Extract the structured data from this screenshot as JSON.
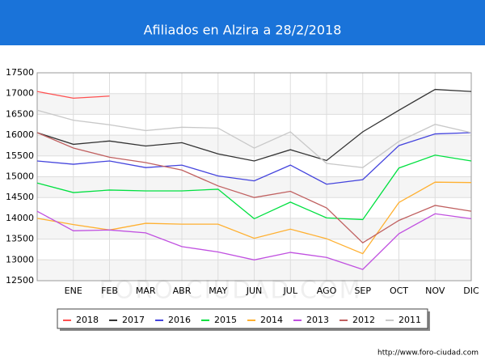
{
  "chart_data": {
    "type": "line",
    "title": "Afiliados en Alzira a 28/2/2018",
    "watermark": "FORO-CIUDAD.COM",
    "source": "http://www.foro-ciudad.com",
    "categories": [
      null,
      "ENE",
      "FEB",
      "MAR",
      "ABR",
      "MAY",
      "JUN",
      "JUL",
      "AGO",
      "SEP",
      "OCT",
      "NOV",
      "DIC"
    ],
    "ylim": [
      12500,
      17500
    ],
    "yticks": [
      12500,
      13000,
      13500,
      14000,
      14500,
      15000,
      15500,
      16000,
      16500,
      17000,
      17500
    ],
    "grid": true,
    "series": [
      {
        "name": "2018",
        "color": "#ff5050",
        "values": [
          17050,
          16890,
          16940,
          null,
          null,
          null,
          null,
          null,
          null,
          null,
          null,
          null,
          null
        ]
      },
      {
        "name": "2017",
        "color": "#333333",
        "values": [
          16060,
          15780,
          15860,
          15740,
          15820,
          15550,
          15380,
          15650,
          15390,
          16080,
          16600,
          17100,
          17050
        ]
      },
      {
        "name": "2016",
        "color": "#4444dd",
        "values": [
          15380,
          15300,
          15380,
          15220,
          15280,
          15020,
          14900,
          15280,
          14820,
          14930,
          15750,
          16030,
          16060
        ]
      },
      {
        "name": "2015",
        "color": "#00e040",
        "values": [
          14850,
          14620,
          14680,
          14660,
          14660,
          14700,
          13990,
          14390,
          14010,
          13970,
          15210,
          15520,
          15380
        ]
      },
      {
        "name": "2014",
        "color": "#ffb030",
        "values": [
          14000,
          13850,
          13720,
          13880,
          13860,
          13860,
          13520,
          13740,
          13510,
          13150,
          14380,
          14870,
          14860
        ]
      },
      {
        "name": "2013",
        "color": "#c050e0",
        "values": [
          14170,
          13700,
          13720,
          13650,
          13320,
          13190,
          13000,
          13180,
          13060,
          12770,
          13630,
          14110,
          13990
        ]
      },
      {
        "name": "2012",
        "color": "#c06060",
        "values": [
          16060,
          15690,
          15470,
          15340,
          15160,
          14780,
          14500,
          14650,
          14250,
          13410,
          13950,
          14310,
          14170
        ]
      },
      {
        "name": "2011",
        "color": "#c8c8c8",
        "values": [
          16600,
          16360,
          16250,
          16110,
          16190,
          16170,
          15690,
          16080,
          15320,
          15220,
          15850,
          16260,
          16060
        ]
      }
    ]
  }
}
